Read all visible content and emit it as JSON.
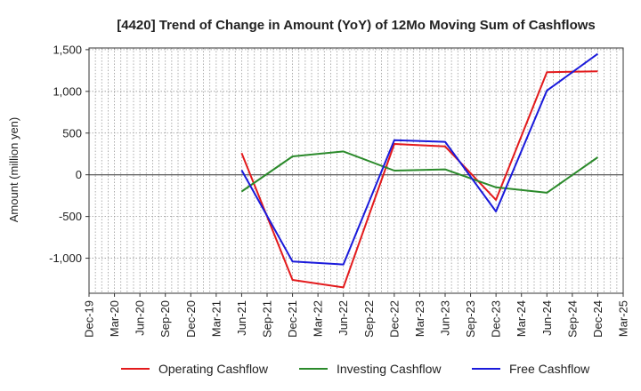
{
  "chart_data": {
    "type": "line",
    "title": "[4420]  Trend of Change in Amount (YoY) of 12Mo Moving Sum of Cashflows",
    "xlabel": "",
    "ylabel": "Amount (million yen)",
    "ylim": [
      -1420,
      1520
    ],
    "yticks": [
      1500,
      1000,
      500,
      0,
      -500,
      -1000
    ],
    "ytick_labels": [
      "1,500",
      "1,000",
      "500",
      "0",
      "-500",
      "-1,000"
    ],
    "categories": [
      "Dec-19",
      "Mar-20",
      "Jun-20",
      "Sep-20",
      "Dec-20",
      "Mar-21",
      "Jun-21",
      "Sep-21",
      "Dec-21",
      "Mar-22",
      "Jun-22",
      "Sep-22",
      "Dec-22",
      "Mar-23",
      "Jun-23",
      "Sep-23",
      "Dec-23",
      "Mar-24",
      "Jun-24",
      "Sep-24",
      "Dec-24",
      "Mar-25"
    ],
    "grid": true,
    "legend_position": "bottom",
    "series": [
      {
        "name": "Operating Cashflow",
        "color": "#e31a1c",
        "points": [
          {
            "x": "Jun-21",
            "y": 260
          },
          {
            "x": "Dec-21",
            "y": -1260
          },
          {
            "x": "Jun-22",
            "y": -1350
          },
          {
            "x": "Dec-22",
            "y": 370
          },
          {
            "x": "Jun-23",
            "y": 340
          },
          {
            "x": "Dec-23",
            "y": -300
          },
          {
            "x": "Jun-24",
            "y": 1230
          },
          {
            "x": "Dec-24",
            "y": 1240
          }
        ]
      },
      {
        "name": "Investing Cashflow",
        "color": "#2b8a2b",
        "points": [
          {
            "x": "Jun-21",
            "y": -200
          },
          {
            "x": "Dec-21",
            "y": 220
          },
          {
            "x": "Jun-22",
            "y": 280
          },
          {
            "x": "Dec-22",
            "y": 50
          },
          {
            "x": "Jun-23",
            "y": 65
          },
          {
            "x": "Dec-23",
            "y": -150
          },
          {
            "x": "Jun-24",
            "y": -215
          },
          {
            "x": "Dec-24",
            "y": 210
          }
        ]
      },
      {
        "name": "Free Cashflow",
        "color": "#1a1adb",
        "points": [
          {
            "x": "Jun-21",
            "y": 55
          },
          {
            "x": "Dec-21",
            "y": -1040
          },
          {
            "x": "Jun-22",
            "y": -1075
          },
          {
            "x": "Dec-22",
            "y": 415
          },
          {
            "x": "Jun-23",
            "y": 395
          },
          {
            "x": "Dec-23",
            "y": -440
          },
          {
            "x": "Jun-24",
            "y": 1010
          },
          {
            "x": "Dec-24",
            "y": 1450
          }
        ]
      }
    ]
  }
}
